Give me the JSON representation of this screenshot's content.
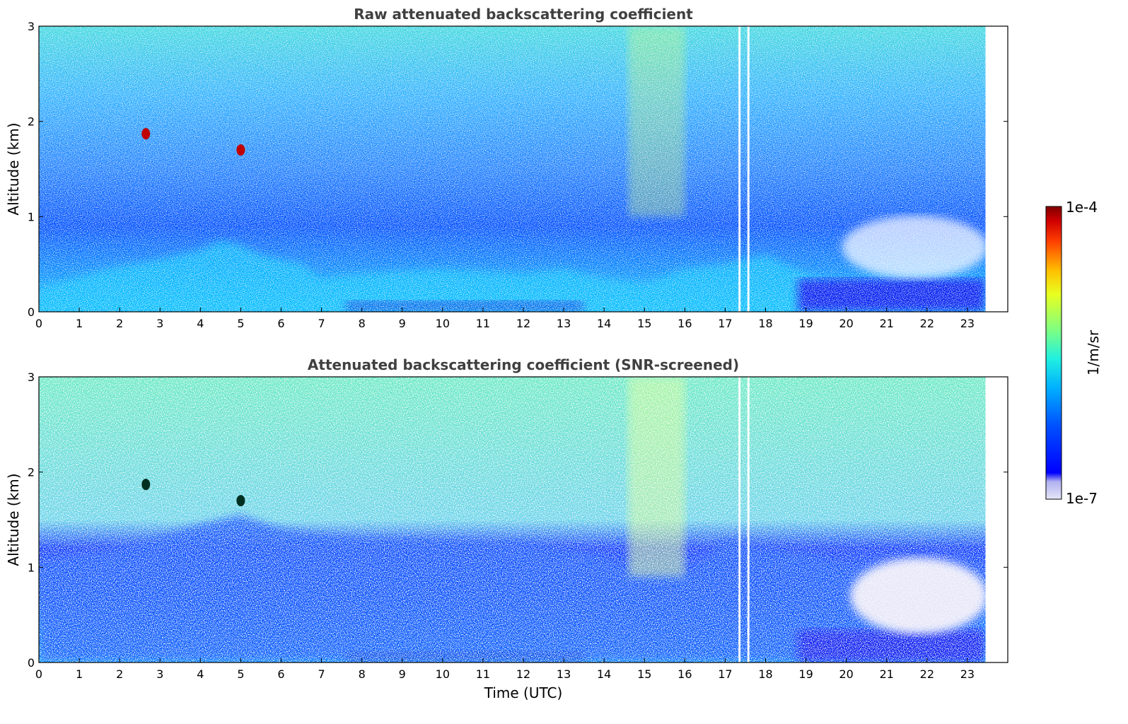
{
  "chart_data": [
    {
      "type": "heatmap",
      "title": "Raw attenuated backscattering coefficient",
      "xlabel": "",
      "ylabel": "Altitude (km)",
      "xlim": [
        0,
        24
      ],
      "ylim": [
        0,
        3
      ],
      "x_ticks": [
        "0",
        "1",
        "2",
        "3",
        "4",
        "5",
        "6",
        "7",
        "8",
        "9",
        "10",
        "11",
        "12",
        "13",
        "14",
        "15",
        "16",
        "17",
        "18",
        "19",
        "20",
        "21",
        "22",
        "23"
      ],
      "y_ticks": [
        "0",
        "1",
        "2",
        "3"
      ],
      "data_time_range": [
        0,
        23.45
      ],
      "gaps": [
        [
          17.33,
          17.38
        ],
        [
          17.55,
          17.6
        ]
      ],
      "features": {
        "aerosol_layer_top_km": [
          [
            0,
            0.25
          ],
          [
            1.7,
            0.45
          ],
          [
            3,
            0.55
          ],
          [
            4,
            0.65
          ],
          [
            4.5,
            0.75
          ],
          [
            5,
            0.7
          ],
          [
            5.5,
            0.6
          ],
          [
            6.5,
            0.5
          ],
          [
            7,
            0.35
          ],
          [
            8,
            0.4
          ],
          [
            10,
            0.45
          ],
          [
            12,
            0.4
          ],
          [
            13,
            0.45
          ],
          [
            14,
            0.35
          ],
          [
            15,
            0.3
          ],
          [
            16,
            0.45
          ],
          [
            17,
            0.5
          ],
          [
            18,
            0.6
          ],
          [
            19,
            0.4
          ],
          [
            20,
            0.3
          ],
          [
            22,
            0.25
          ],
          [
            23.4,
            0.3
          ]
        ],
        "cloud_spots": [
          {
            "time": 2.65,
            "alt_km": 1.87
          },
          {
            "time": 5.0,
            "alt_km": 1.7
          }
        ],
        "enhanced_noise_region": {
          "time": [
            14.6,
            16.0
          ],
          "alt_km": [
            1.0,
            3.0
          ]
        },
        "clean_region_after": 19.5
      }
    },
    {
      "type": "heatmap",
      "title": "Attenuated backscattering coefficient (SNR-screened)",
      "xlabel": "Time (UTC)",
      "ylabel": "Altitude (km)",
      "xlim": [
        0,
        24
      ],
      "ylim": [
        0,
        3
      ],
      "x_ticks": [
        "0",
        "1",
        "2",
        "3",
        "4",
        "5",
        "6",
        "7",
        "8",
        "9",
        "10",
        "11",
        "12",
        "13",
        "14",
        "15",
        "16",
        "17",
        "18",
        "19",
        "20",
        "21",
        "22",
        "23"
      ],
      "y_ticks": [
        "0",
        "1",
        "2",
        "3"
      ],
      "data_time_range": [
        0,
        23.45
      ],
      "gaps": [
        [
          17.33,
          17.38
        ],
        [
          17.55,
          17.6
        ]
      ],
      "features": {
        "boundary_layer_top_km": [
          [
            0,
            1.05
          ],
          [
            2,
            1.2
          ],
          [
            4,
            1.45
          ],
          [
            5,
            1.55
          ],
          [
            6,
            1.4
          ],
          [
            8,
            1.3
          ],
          [
            10,
            1.3
          ],
          [
            12,
            1.25
          ],
          [
            13,
            1.2
          ],
          [
            14,
            1.1
          ],
          [
            15,
            0.85
          ],
          [
            16,
            0.85
          ],
          [
            17,
            1.3
          ],
          [
            18,
            1.2
          ],
          [
            19,
            1.15
          ],
          [
            20,
            1.0
          ],
          [
            21,
            0.9
          ],
          [
            23.4,
            0.8
          ]
        ],
        "cloud_spots": [
          {
            "time": 2.65,
            "alt_km": 1.87
          },
          {
            "time": 5.0,
            "alt_km": 1.7
          }
        ]
      }
    }
  ],
  "colorbar": {
    "label": "1/m/sr",
    "max_label": "1e-4",
    "min_label": "1e-7",
    "colormap": "jet-with-white-low",
    "colors": [
      "#e6e6f8",
      "#b8b8f0",
      "#0000ff",
      "#0060ff",
      "#00c0ff",
      "#40ffc0",
      "#c0ff40",
      "#ffd000",
      "#ff5000",
      "#c00000",
      "#800000"
    ]
  }
}
